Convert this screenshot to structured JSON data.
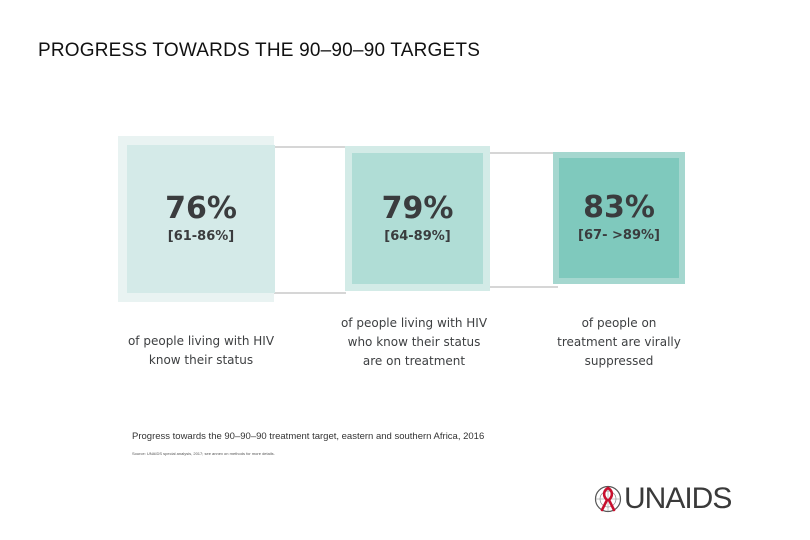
{
  "title": "PROGRESS TOWARDS THE 90–90–90 TARGETS",
  "targets": [
    {
      "percent": "76%",
      "range": "[61-86%]",
      "desc_lines": [
        "of people living with HIV",
        "know their status"
      ],
      "value": 76
    },
    {
      "percent": "79%",
      "range": "[64-89%]",
      "desc_lines": [
        "of people living with HIV",
        "who know their status",
        "are on treatment"
      ],
      "value": 79
    },
    {
      "percent": "83%",
      "range": "[67- >89%]",
      "desc_lines": [
        "of people on",
        "treatment are virally",
        "suppressed"
      ],
      "value": 83
    }
  ],
  "caption": "Progress towards the 90–90–90 treatment target, eastern and southern Africa, 2016",
  "source": "Source: UNAIDS special analysis, 2017; see annex on methods for more details.",
  "logo": {
    "text": "UNAIDS"
  },
  "colors": {
    "box1_outer": "#e9f3f2",
    "box1_inner": "#d4eae8",
    "box2_outer": "#d3ebe7",
    "box2_inner": "#b0ddd6",
    "box3_outer": "#a5d7cf",
    "box3_inner": "#7fc9bd",
    "logo_red": "#c8102e"
  }
}
